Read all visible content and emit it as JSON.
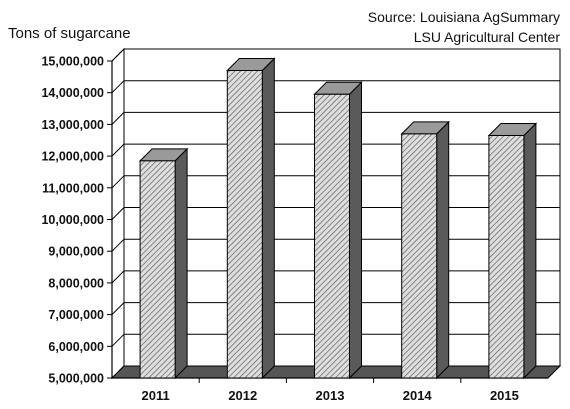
{
  "chart_data": {
    "type": "bar",
    "title": "",
    "ylabel": "Tons of sugarcane",
    "xlabel": "",
    "source_lines": [
      "Source: Louisiana AgSummary",
      "LSU Agricultural Center"
    ],
    "categories": [
      "2011",
      "2012",
      "2013",
      "2014",
      "2015"
    ],
    "values": [
      11850000,
      14700000,
      13950000,
      12700000,
      12650000
    ],
    "ylim": [
      5000000,
      15000000
    ],
    "yticks": [
      5000000,
      6000000,
      7000000,
      8000000,
      9000000,
      10000000,
      11000000,
      12000000,
      13000000,
      14000000,
      15000000
    ],
    "ytick_labels": [
      "5,000,000",
      "6,000,000",
      "7,000,000",
      "8,000,000",
      "9,000,000",
      "10,000,000",
      "11,000,000",
      "12,000,000",
      "13,000,000",
      "14,000,000",
      "15,000,000"
    ],
    "grid": true,
    "style": "3d-hatched",
    "colors": {
      "bar_front": "#d9d9d9",
      "bar_side": "#5a5a5a",
      "bar_top": "#9a9a9a",
      "hatch": "#444444",
      "floor": "#555555",
      "grid": "#000000"
    }
  }
}
